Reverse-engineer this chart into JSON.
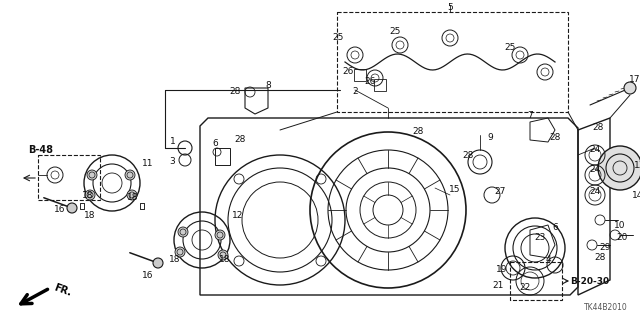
{
  "bg_color": "#ffffff",
  "fig_width": 6.4,
  "fig_height": 3.19,
  "dpi": 100,
  "line_color": "#1a1a1a",
  "text_color": "#111111",
  "diagram_code": "TK44B2010",
  "ref_b48": "B-48",
  "ref_b2030": "B-20-30",
  "ref_fr": "FR.",
  "gray_fill": "#d8d8d8",
  "light_gray": "#eeeeee"
}
